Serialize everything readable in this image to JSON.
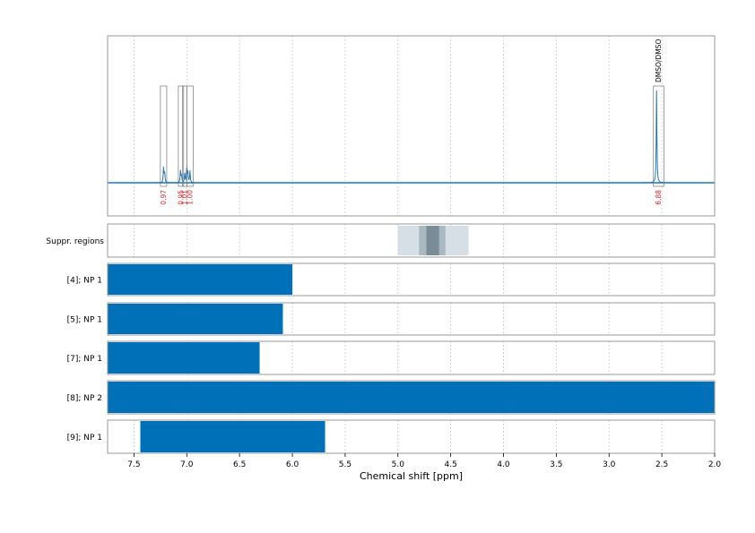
{
  "chart_data": {
    "type": "nmr-spectrum-with-range-bars",
    "xlabel": "Chemical shift [ppm]",
    "x_reversed": true,
    "xlim": [
      7.75,
      2.0
    ],
    "xticks": [
      {
        "value": 7.5,
        "label": "7.5"
      },
      {
        "value": 7.0,
        "label": "7.0"
      },
      {
        "value": 6.5,
        "label": "6.5"
      },
      {
        "value": 6.0,
        "label": "6.0"
      },
      {
        "value": 5.5,
        "label": "5.5"
      },
      {
        "value": 5.0,
        "label": "5.0"
      },
      {
        "value": 4.5,
        "label": "4.5"
      },
      {
        "value": 4.0,
        "label": "4.0"
      },
      {
        "value": 3.5,
        "label": "3.5"
      },
      {
        "value": 3.0,
        "label": "3.0"
      },
      {
        "value": 2.5,
        "label": "2.5"
      },
      {
        "value": 2.0,
        "label": "2.0"
      }
    ],
    "grid": "dotted-vertical",
    "spectrum": {
      "color": "#1f77b4",
      "peaks": [
        {
          "center": 7.22,
          "height": 0.15
        },
        {
          "center": 7.21,
          "height": 0.12
        },
        {
          "center": 7.06,
          "height": 0.12
        },
        {
          "center": 7.05,
          "height": 0.08
        },
        {
          "center": 7.02,
          "height": 0.1
        },
        {
          "center": 7.0,
          "height": 0.17
        },
        {
          "center": 6.99,
          "height": 0.1
        },
        {
          "center": 6.97,
          "height": 0.12
        },
        {
          "center": 2.55,
          "height": 0.95
        }
      ]
    },
    "integrals": [
      {
        "from": 7.25,
        "to": 7.19,
        "value": "0.97"
      },
      {
        "from": 7.08,
        "to": 7.03,
        "value": "0.95"
      },
      {
        "from": 7.04,
        "to": 7.0,
        "value": "1.01"
      },
      {
        "from": 7.0,
        "to": 6.94,
        "value": "1.00"
      },
      {
        "from": 2.58,
        "to": 2.48,
        "value": "6.88",
        "annotation": "DMSO/DMSO"
      }
    ],
    "suppression": {
      "label": "Suppr. regions",
      "bands": [
        {
          "from": 5.0,
          "to": 4.33,
          "shade": "light"
        },
        {
          "from": 4.8,
          "to": 4.55,
          "shade": "medium"
        },
        {
          "from": 4.73,
          "to": 4.61,
          "shade": "dark"
        }
      ]
    },
    "ranges": [
      {
        "label": "[4]; NP 1",
        "from": 7.75,
        "to": 6.0
      },
      {
        "label": "[5]; NP 1",
        "from": 7.75,
        "to": 6.09
      },
      {
        "label": "[7]; NP 1",
        "from": 7.75,
        "to": 6.31
      },
      {
        "label": "[8]; NP 2",
        "from": 7.75,
        "to": 2.0
      },
      {
        "label": "[9]; NP 1",
        "from": 7.44,
        "to": 5.69
      }
    ],
    "colors": {
      "bar": "#0070b8",
      "integral_label": "#d62728",
      "frame": "#999999",
      "grid": "#cccccc",
      "suppr_light": "#d6dfe6",
      "suppr_medium": "#aab8c2",
      "suppr_dark": "#7a8c98"
    }
  }
}
